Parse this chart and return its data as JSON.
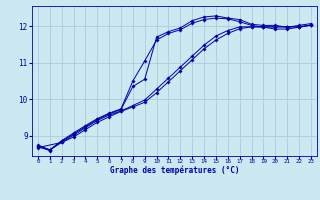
{
  "title": "Graphe des températures (°C)",
  "background_color": "#cce8f0",
  "grid_color": "#aaccdd",
  "line_color": "#0000aa",
  "marker": "D",
  "markersize": 1.8,
  "xlim": [
    -0.5,
    23.5
  ],
  "ylim": [
    8.45,
    12.55
  ],
  "yticks": [
    9,
    10,
    11,
    12
  ],
  "xticks": [
    0,
    1,
    2,
    3,
    4,
    5,
    6,
    7,
    8,
    9,
    10,
    11,
    12,
    13,
    14,
    15,
    16,
    17,
    18,
    19,
    20,
    21,
    22,
    23
  ],
  "line1_x": [
    0,
    1,
    2,
    3,
    4,
    5,
    6,
    7,
    8,
    9,
    10,
    11,
    12,
    13,
    14,
    15,
    16,
    17,
    18,
    19,
    20,
    21,
    22,
    23
  ],
  "line1_y": [
    8.7,
    8.6,
    8.85,
    9.05,
    9.25,
    9.45,
    9.6,
    9.72,
    10.35,
    10.55,
    11.7,
    11.85,
    11.95,
    12.15,
    12.25,
    12.28,
    12.22,
    12.18,
    12.05,
    12.02,
    12.02,
    11.97,
    12.02,
    12.07
  ],
  "line2_x": [
    0,
    1,
    2,
    3,
    4,
    5,
    6,
    7,
    8,
    9,
    10,
    11,
    12,
    13,
    14,
    15,
    16,
    17,
    18,
    19,
    20,
    21,
    22,
    23
  ],
  "line2_y": [
    8.72,
    8.62,
    8.87,
    9.08,
    9.28,
    9.47,
    9.62,
    9.74,
    10.5,
    11.05,
    11.62,
    11.8,
    11.9,
    12.08,
    12.18,
    12.22,
    12.2,
    12.12,
    12.02,
    11.97,
    11.92,
    11.92,
    11.97,
    12.02
  ],
  "line3_x": [
    0,
    1,
    2,
    3,
    4,
    5,
    6,
    7,
    8,
    9,
    10,
    11,
    12,
    13,
    14,
    15,
    16,
    17,
    18,
    19,
    20,
    21,
    22,
    23
  ],
  "line3_y": [
    8.75,
    8.62,
    8.82,
    9.02,
    9.22,
    9.42,
    9.57,
    9.68,
    9.83,
    9.98,
    10.28,
    10.58,
    10.88,
    11.18,
    11.48,
    11.73,
    11.88,
    11.98,
    11.98,
    11.98,
    11.98,
    11.98,
    11.98,
    12.03
  ],
  "line4_x": [
    0,
    2,
    3,
    4,
    5,
    6,
    7,
    8,
    9,
    10,
    11,
    12,
    13,
    14,
    15,
    16,
    17,
    18,
    19,
    20,
    21,
    22,
    23
  ],
  "line4_y": [
    8.68,
    8.82,
    8.97,
    9.17,
    9.37,
    9.52,
    9.67,
    9.79,
    9.92,
    10.18,
    10.48,
    10.78,
    11.08,
    11.38,
    11.62,
    11.8,
    11.93,
    11.98,
    11.98,
    11.98,
    11.98,
    11.98,
    12.03
  ]
}
